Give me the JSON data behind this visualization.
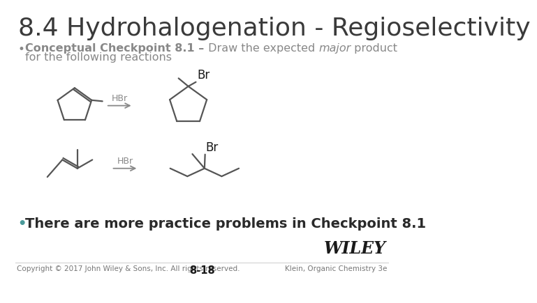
{
  "title": "8.4 Hydrohalogenation - Regioselectivity",
  "title_fontsize": 26,
  "title_color": "#3a3a3a",
  "bg_color": "#ffffff",
  "bullet1_bold": "Conceptual Checkpoint 8.1 –",
  "bullet1_rest": " Draw the expected ",
  "bullet1_italic": "major",
  "bullet1_end": " product",
  "bullet1_line2": "for the following reactions",
  "bullet1_color": "#888888",
  "bullet1_bold_color": "#888888",
  "bullet2": "There are more practice problems in Checkpoint 8.1",
  "bullet2_color": "#2a2a2a",
  "bullet2_fontsize": 14,
  "bullet2_bullet_color": "#4a9a9a",
  "footer_left": "Copyright © 2017 John Wiley & Sons, Inc. All rights reserved.",
  "footer_center": "8-18",
  "footer_right": "Klein, Organic Chemistry 3e",
  "footer_color": "#777777",
  "footer_fontsize": 7.5,
  "wiley_text": "WILEY",
  "wiley_color": "#1a1a1a",
  "wiley_fontsize": 17,
  "mol_color": "#555555",
  "arrow_color": "#888888",
  "br_color": "#1a1a1a",
  "hbr_color": "#888888"
}
